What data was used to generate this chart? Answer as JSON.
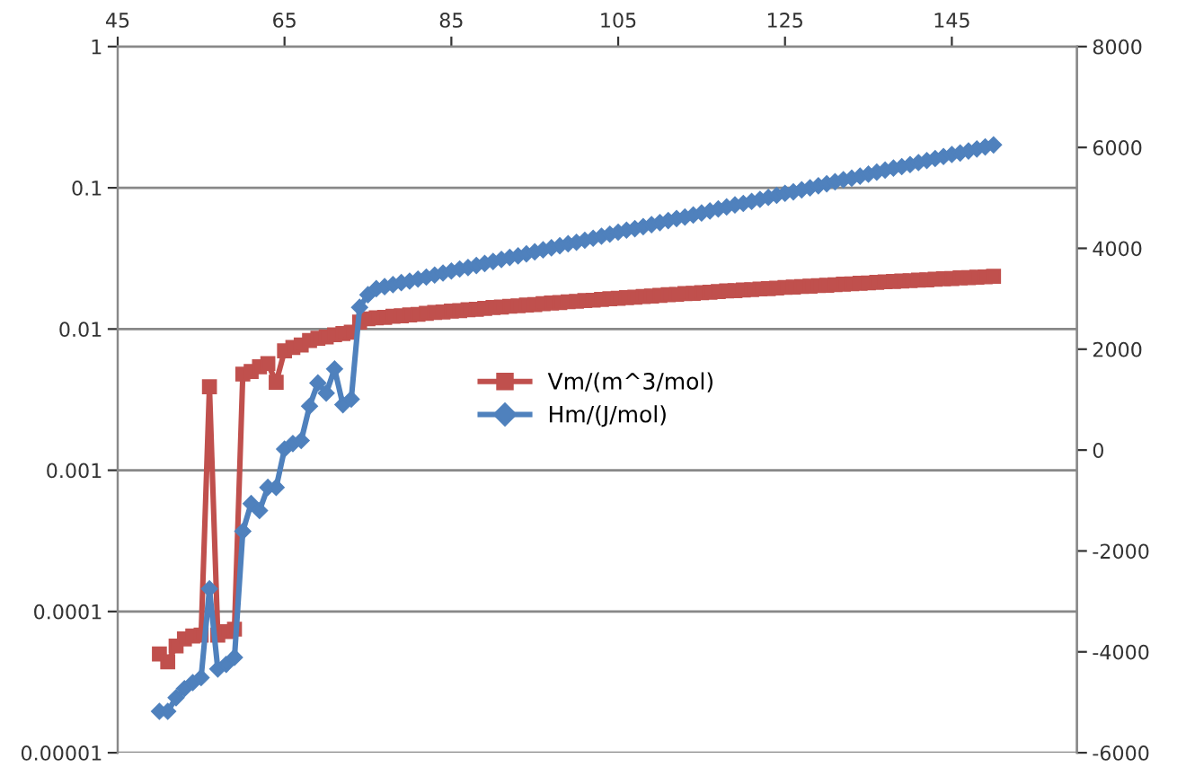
{
  "chart_data": {
    "type": "line",
    "x": [
      50,
      51,
      52,
      53,
      54,
      55,
      56,
      57,
      58,
      59,
      60,
      61,
      62,
      63,
      64,
      65,
      66,
      67,
      68,
      69,
      70,
      71,
      72,
      73,
      74,
      75,
      76,
      77,
      78,
      79,
      80,
      81,
      82,
      83,
      84,
      85,
      86,
      87,
      88,
      89,
      90,
      91,
      92,
      93,
      94,
      95,
      96,
      97,
      98,
      99,
      100,
      101,
      102,
      103,
      104,
      105,
      106,
      107,
      108,
      109,
      110,
      111,
      112,
      113,
      114,
      115,
      116,
      117,
      118,
      119,
      120,
      121,
      122,
      123,
      124,
      125,
      126,
      127,
      128,
      129,
      130,
      131,
      132,
      133,
      134,
      135,
      136,
      137,
      138,
      139,
      140,
      141,
      142,
      143,
      144,
      145,
      146,
      147,
      148,
      149,
      150
    ],
    "series": [
      {
        "name": "Vm/(m^3/mol)",
        "color": "#c0504d",
        "marker": "square",
        "values": [
          5e-05,
          4.4e-05,
          5.7e-05,
          6.4e-05,
          6.7e-05,
          6.8e-05,
          0.0039,
          6.8e-05,
          7.2e-05,
          7.5e-05,
          0.0048,
          0.005,
          0.0054,
          0.0057,
          0.0042,
          0.007,
          0.0074,
          0.0077,
          0.0083,
          0.0086,
          0.0088,
          0.0091,
          0.0093,
          0.0095,
          0.0112,
          0.0118,
          0.012,
          0.0121,
          0.0123,
          0.0124,
          0.0126,
          0.0127,
          0.0129,
          0.0131,
          0.0132,
          0.0134,
          0.0135,
          0.0137,
          0.0138,
          0.014,
          0.0142,
          0.0143,
          0.0145,
          0.0146,
          0.0148,
          0.0149,
          0.0151,
          0.0153,
          0.0154,
          0.0156,
          0.0157,
          0.0159,
          0.016,
          0.0162,
          0.0164,
          0.0165,
          0.0167,
          0.0168,
          0.017,
          0.0171,
          0.0173,
          0.0175,
          0.0176,
          0.0178,
          0.0179,
          0.0181,
          0.0182,
          0.0184,
          0.0186,
          0.0187,
          0.0189,
          0.019,
          0.0192,
          0.0193,
          0.0195,
          0.0197,
          0.0198,
          0.02,
          0.0201,
          0.0203,
          0.0204,
          0.0206,
          0.0208,
          0.0209,
          0.0211,
          0.0212,
          0.0214,
          0.0216,
          0.0217,
          0.0219,
          0.022,
          0.0222,
          0.0223,
          0.0225,
          0.0227,
          0.0228,
          0.023,
          0.0231,
          0.0233,
          0.0234,
          0.0236
        ]
      },
      {
        "name": "Hm/(J/mol)",
        "color": "#4f81bd",
        "marker": "diamond",
        "axis": "y2",
        "values": [
          -5180,
          -5180,
          -4910,
          -4730,
          -4610,
          -4510,
          -2750,
          -4340,
          -4250,
          -4110,
          -1610,
          -1060,
          -1200,
          -740,
          -740,
          20,
          130,
          190,
          870,
          1330,
          1130,
          1610,
          900,
          1010,
          2830,
          3080,
          3200,
          3240,
          3280,
          3320,
          3350,
          3390,
          3430,
          3470,
          3510,
          3550,
          3590,
          3620,
          3660,
          3700,
          3740,
          3780,
          3820,
          3850,
          3890,
          3930,
          3970,
          4010,
          4050,
          4090,
          4120,
          4160,
          4200,
          4240,
          4280,
          4320,
          4360,
          4390,
          4430,
          4470,
          4510,
          4550,
          4590,
          4620,
          4660,
          4700,
          4740,
          4780,
          4820,
          4860,
          4890,
          4930,
          4970,
          5010,
          5050,
          5090,
          5120,
          5160,
          5200,
          5240,
          5280,
          5320,
          5360,
          5390,
          5430,
          5470,
          5510,
          5550,
          5590,
          5620,
          5660,
          5700,
          5740,
          5780,
          5820,
          5860,
          5890,
          5930,
          5970,
          6010,
          6050
        ]
      }
    ],
    "log": "y",
    "xlim": [
      45,
      160
    ],
    "xticks": [
      45,
      65,
      85,
      105,
      125,
      145
    ],
    "ylim": [
      1e-05,
      1
    ],
    "yticks": [
      {
        "value": 1e-05,
        "label": "0.00001"
      },
      0.0001,
      0.001,
      0.01,
      0.1,
      1
    ],
    "y2lim": [
      -6000,
      8000
    ],
    "y2ticks": [
      -6000,
      -4000,
      -2000,
      0,
      2000,
      4000,
      6000,
      8000
    ],
    "grid": "y",
    "legend": "center"
  }
}
